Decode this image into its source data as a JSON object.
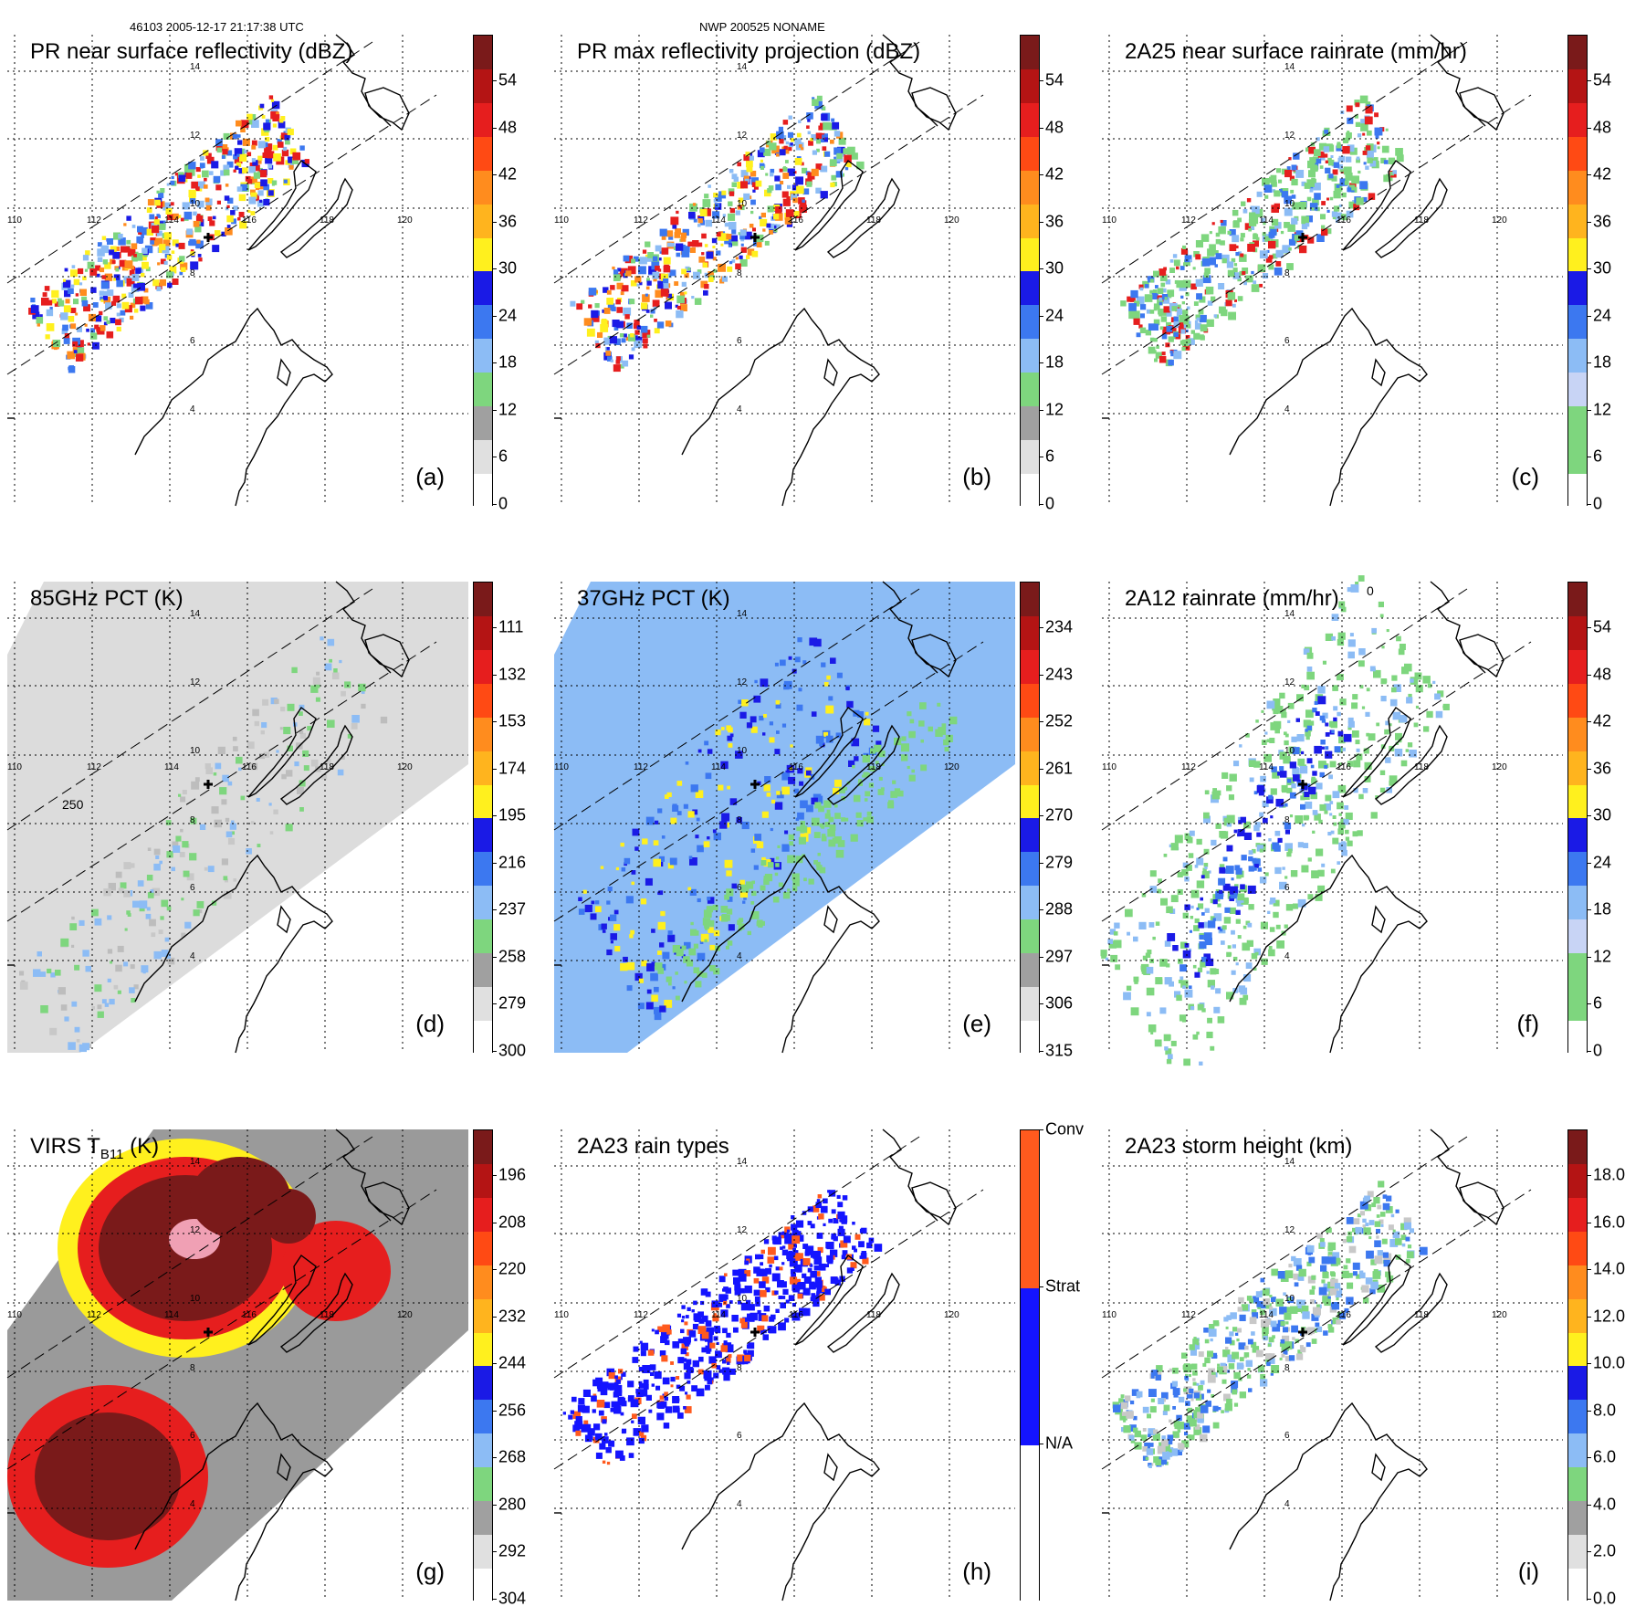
{
  "header": {
    "left": "46103 2005-12-17 21:17:38 UTC",
    "center": "NWP 200525 NONAME"
  },
  "axes": {
    "lon_labels": [
      "110",
      "112",
      "114",
      "116",
      "118",
      "120"
    ],
    "lat_labels": [
      "14",
      "12",
      "10",
      "8",
      "6",
      "4"
    ]
  },
  "colors": {
    "green": "#7ed67e",
    "blue_dark": "#1a1ae6",
    "blue_mid": "#3c78f0",
    "blue_light": "#8cbcf5",
    "yellow": "#fff01e",
    "orange": "#ff8c1e",
    "red": "#e61e1e",
    "darkred": "#7a1a1a",
    "grey": "#b4b4b4",
    "conv": "#ff5a1e",
    "strat": "#1414ff"
  },
  "panels": [
    {
      "id": "a",
      "title": "PR near surface reflectivity (dBZ)",
      "label": "(a)",
      "colorbar_ticks": [
        "54",
        "48",
        "42",
        "36",
        "30",
        "24",
        "18",
        "12",
        "6",
        "0"
      ]
    },
    {
      "id": "b",
      "title": "PR max reflectivity projection (dBZ)",
      "label": "(b)",
      "colorbar_ticks": [
        "54",
        "48",
        "42",
        "36",
        "30",
        "24",
        "18",
        "12",
        "6",
        "0"
      ]
    },
    {
      "id": "c",
      "title": "2A25 near surface rainrate (mm/hr)",
      "label": "(c)",
      "colorbar_ticks": [
        "54",
        "48",
        "42",
        "36",
        "30",
        "24",
        "18",
        "12",
        "6",
        "0"
      ]
    },
    {
      "id": "d",
      "title": "85GHz PCT (K)",
      "label": "(d)",
      "contour_label": "250",
      "colorbar_ticks": [
        "111",
        "132",
        "153",
        "174",
        "195",
        "216",
        "237",
        "258",
        "279",
        "300"
      ]
    },
    {
      "id": "e",
      "title": "37GHz PCT (K)",
      "label": "(e)",
      "colorbar_ticks": [
        "234",
        "243",
        "252",
        "261",
        "270",
        "279",
        "288",
        "297",
        "306",
        "315"
      ]
    },
    {
      "id": "f",
      "title": "2A12 rainrate (mm/hr)",
      "label": "(f)",
      "contour_label": "0",
      "colorbar_ticks": [
        "54",
        "48",
        "42",
        "36",
        "30",
        "24",
        "18",
        "12",
        "6",
        "0"
      ]
    },
    {
      "id": "g",
      "title": "VIRS T",
      "title_sub": "B11",
      "title_tail": " (K)",
      "label": "(g)",
      "colorbar_ticks": [
        "196",
        "208",
        "220",
        "232",
        "244",
        "256",
        "268",
        "280",
        "292",
        "304"
      ]
    },
    {
      "id": "h",
      "title": "2A23 rain types",
      "label": "(h)",
      "colorbar_ticks": [
        "Conv",
        "Strat",
        "N/A"
      ]
    },
    {
      "id": "i",
      "title": "2A23 storm height (km)",
      "label": "(i)",
      "colorbar_ticks": [
        "18.0",
        "16.0",
        "14.0",
        "12.0",
        "10.0",
        "8.0",
        "6.0",
        "4.0",
        "2.0",
        "0.0"
      ]
    }
  ]
}
